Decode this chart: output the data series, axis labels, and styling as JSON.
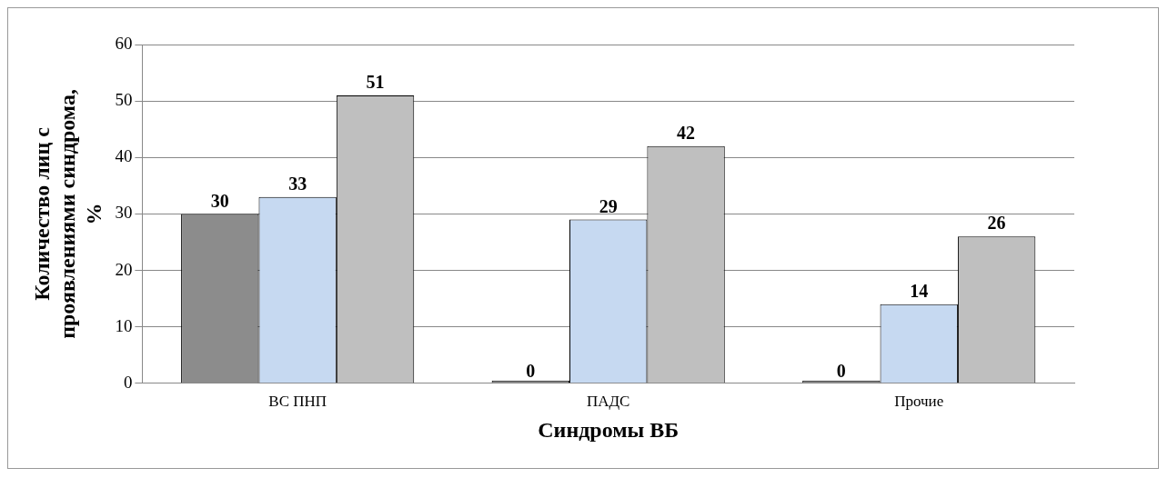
{
  "chart_data": {
    "type": "bar",
    "xlabel": "Синдромы ВБ",
    "ylabel": "Количество лиц с проявлениями синдрома, %",
    "categories": [
      "ВС ПНП",
      "ПАДС",
      "Прочие"
    ],
    "series": [
      {
        "color": "#8c8c8c",
        "values": [
          30,
          0,
          0
        ]
      },
      {
        "color": "#c6d9f1",
        "values": [
          33,
          29,
          14
        ]
      },
      {
        "color": "#bfbfbf",
        "values": [
          51,
          42,
          26
        ]
      }
    ],
    "ylim": [
      0,
      60
    ],
    "yticks": [
      0,
      10,
      20,
      30,
      40,
      50,
      60
    ],
    "grid": "y",
    "legend": false,
    "data_labels": true
  }
}
